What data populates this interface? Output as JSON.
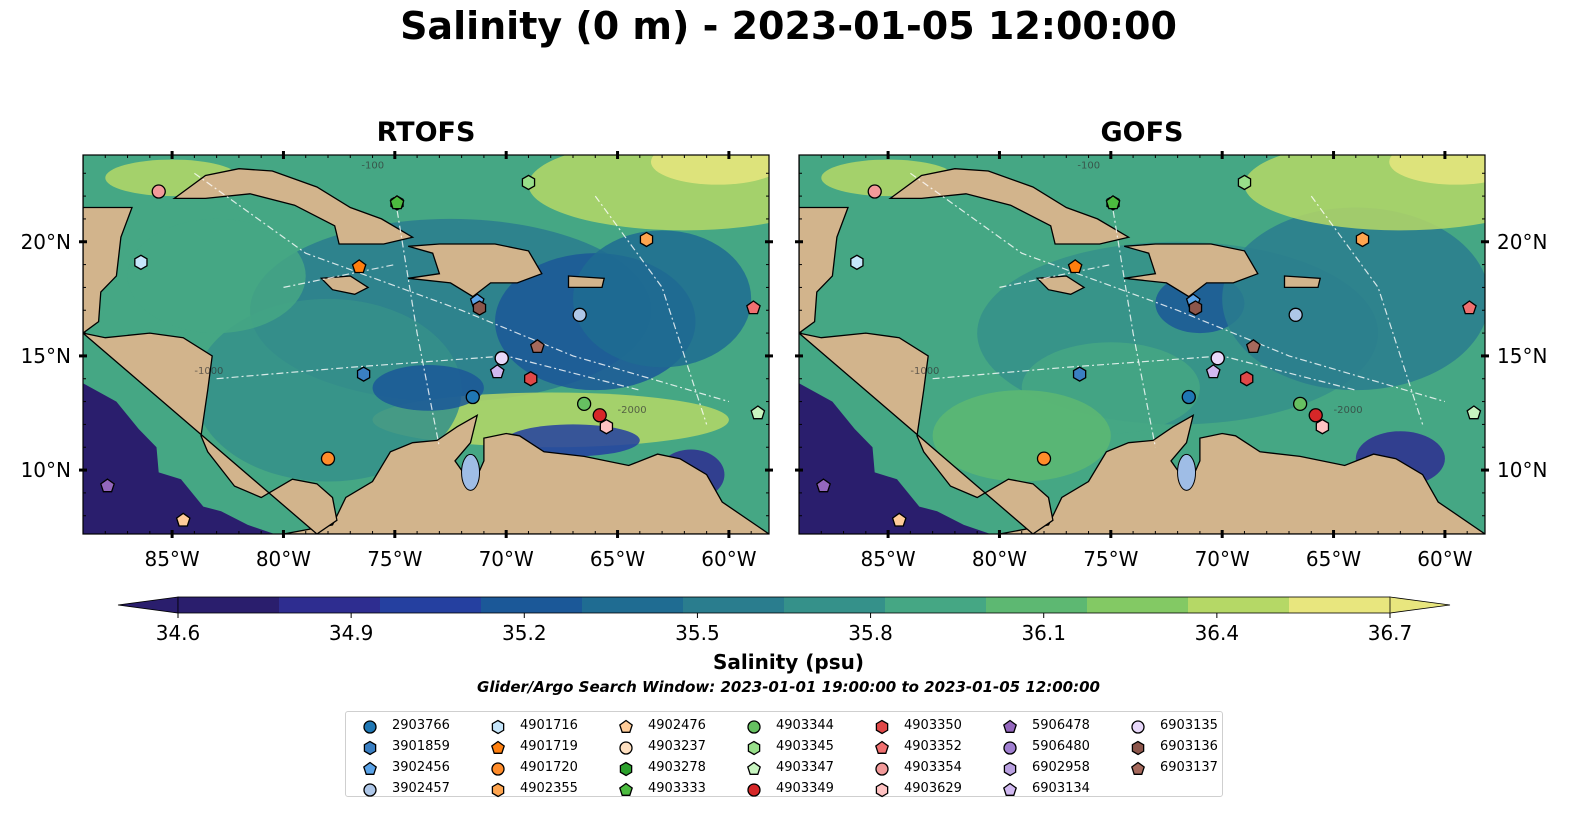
{
  "title": "Salinity (0 m) - 2023-01-05 12:00:00",
  "panels": [
    {
      "title": "RTOFS"
    },
    {
      "title": "GOFS"
    }
  ],
  "lat_ticks": [
    "20°N",
    "15°N",
    "10°N"
  ],
  "lon_ticks": [
    "85°W",
    "80°W",
    "75°W",
    "70°W",
    "65°W",
    "60°W"
  ],
  "contour_labels": [
    "-100",
    "-1000",
    "-2000"
  ],
  "colorbar": {
    "label": "Salinity (psu)",
    "ticks": [
      "34.6",
      "34.9",
      "35.2",
      "35.5",
      "35.8",
      "36.1",
      "36.4",
      "36.7"
    ],
    "range": [
      34.6,
      36.7
    ],
    "colors": [
      "#2a1e6d",
      "#2e2d90",
      "#2540a0",
      "#1b5898",
      "#1f6c92",
      "#2a7d8e",
      "#35918a",
      "#45a784",
      "#5db872",
      "#83c964",
      "#b5d866",
      "#e8e67e"
    ],
    "land_color": "#d2b48c",
    "lake_color": "#9fbde6"
  },
  "search_window": "Glider/Argo Search Window: 2023-01-01 19:00:00 to 2023-01-05 12:00:00",
  "legend": [
    {
      "id": "2903766",
      "marker": "circle",
      "color": "#1f77b4"
    },
    {
      "id": "3901859",
      "marker": "hexagon",
      "color": "#3a7fc2"
    },
    {
      "id": "3902456",
      "marker": "pentagon",
      "color": "#5aa3e8"
    },
    {
      "id": "3902457",
      "marker": "circle",
      "color": "#aec7e8"
    },
    {
      "id": "4901716",
      "marker": "hexagon",
      "color": "#c6e6fb"
    },
    {
      "id": "4901719",
      "marker": "pentagon",
      "color": "#ff7f0e"
    },
    {
      "id": "4901720",
      "marker": "circle",
      "color": "#ff8c2a"
    },
    {
      "id": "4902355",
      "marker": "hexagon",
      "color": "#ffa54f"
    },
    {
      "id": "4902476",
      "marker": "pentagon",
      "color": "#ffcc99"
    },
    {
      "id": "4903237",
      "marker": "circle",
      "color": "#ffe0c0"
    },
    {
      "id": "4903278",
      "marker": "hexagon",
      "color": "#2ca02c"
    },
    {
      "id": "4903333",
      "marker": "pentagon",
      "color": "#4cbb3f"
    },
    {
      "id": "4903344",
      "marker": "circle",
      "color": "#66c061"
    },
    {
      "id": "4903345",
      "marker": "hexagon",
      "color": "#98df8a"
    },
    {
      "id": "4903347",
      "marker": "pentagon",
      "color": "#c8f5c0"
    },
    {
      "id": "4903349",
      "marker": "circle",
      "color": "#d62728"
    },
    {
      "id": "4903350",
      "marker": "hexagon",
      "color": "#e04848"
    },
    {
      "id": "4903352",
      "marker": "pentagon",
      "color": "#f07070"
    },
    {
      "id": "4903354",
      "marker": "circle",
      "color": "#f29a9a"
    },
    {
      "id": "4903629",
      "marker": "hexagon",
      "color": "#ffc2c2"
    },
    {
      "id": "5906478",
      "marker": "pentagon",
      "color": "#9467bd"
    },
    {
      "id": "5906480",
      "marker": "circle",
      "color": "#a07fd0"
    },
    {
      "id": "6902958",
      "marker": "hexagon",
      "color": "#b9a0e0"
    },
    {
      "id": "6903134",
      "marker": "pentagon",
      "color": "#d0b8f0"
    },
    {
      "id": "6903135",
      "marker": "circle",
      "color": "#e8d8fa"
    },
    {
      "id": "6903136",
      "marker": "hexagon",
      "color": "#8c564b"
    },
    {
      "id": "6903137",
      "marker": "pentagon",
      "color": "#a5695c"
    }
  ],
  "observations": [
    {
      "id": "2903766",
      "lon": -71.5,
      "lat": 13.2
    },
    {
      "id": "3901859",
      "lon": -76.4,
      "lat": 14.2
    },
    {
      "id": "3902456",
      "lon": -71.3,
      "lat": 17.4
    },
    {
      "id": "3902457",
      "lon": -66.7,
      "lat": 16.8
    },
    {
      "id": "4901716",
      "lon": -86.4,
      "lat": 19.1
    },
    {
      "id": "4901719",
      "lon": -76.6,
      "lat": 18.9
    },
    {
      "id": "4901720",
      "lon": -78.0,
      "lat": 10.5
    },
    {
      "id": "4902355",
      "lon": -63.7,
      "lat": 20.1
    },
    {
      "id": "4902476",
      "lon": -84.5,
      "lat": 7.8
    },
    {
      "id": "4903237",
      "lon": -70.2,
      "lat": 14.9
    },
    {
      "id": "4903278",
      "lon": -74.9,
      "lat": 21.7
    },
    {
      "id": "4903333",
      "lon": -74.9,
      "lat": 21.7
    },
    {
      "id": "4903344",
      "lon": -66.5,
      "lat": 12.9
    },
    {
      "id": "4903345",
      "lon": -69.0,
      "lat": 22.6
    },
    {
      "id": "4903347",
      "lon": -58.7,
      "lat": 12.5
    },
    {
      "id": "4903349",
      "lon": -65.8,
      "lat": 12.4
    },
    {
      "id": "4903350",
      "lon": -68.9,
      "lat": 14.0
    },
    {
      "id": "4903352",
      "lon": -58.9,
      "lat": 17.1
    },
    {
      "id": "4903354",
      "lon": -85.6,
      "lat": 22.2
    },
    {
      "id": "4903629",
      "lon": -65.5,
      "lat": 11.9
    },
    {
      "id": "5906478",
      "lon": -87.9,
      "lat": 9.3
    },
    {
      "id": "6903134",
      "lon": -70.4,
      "lat": 14.3
    },
    {
      "id": "6903135",
      "lon": -70.2,
      "lat": 14.9
    },
    {
      "id": "6903136",
      "lon": -71.2,
      "lat": 17.1
    },
    {
      "id": "6903137",
      "lon": -68.6,
      "lat": 15.4
    }
  ]
}
